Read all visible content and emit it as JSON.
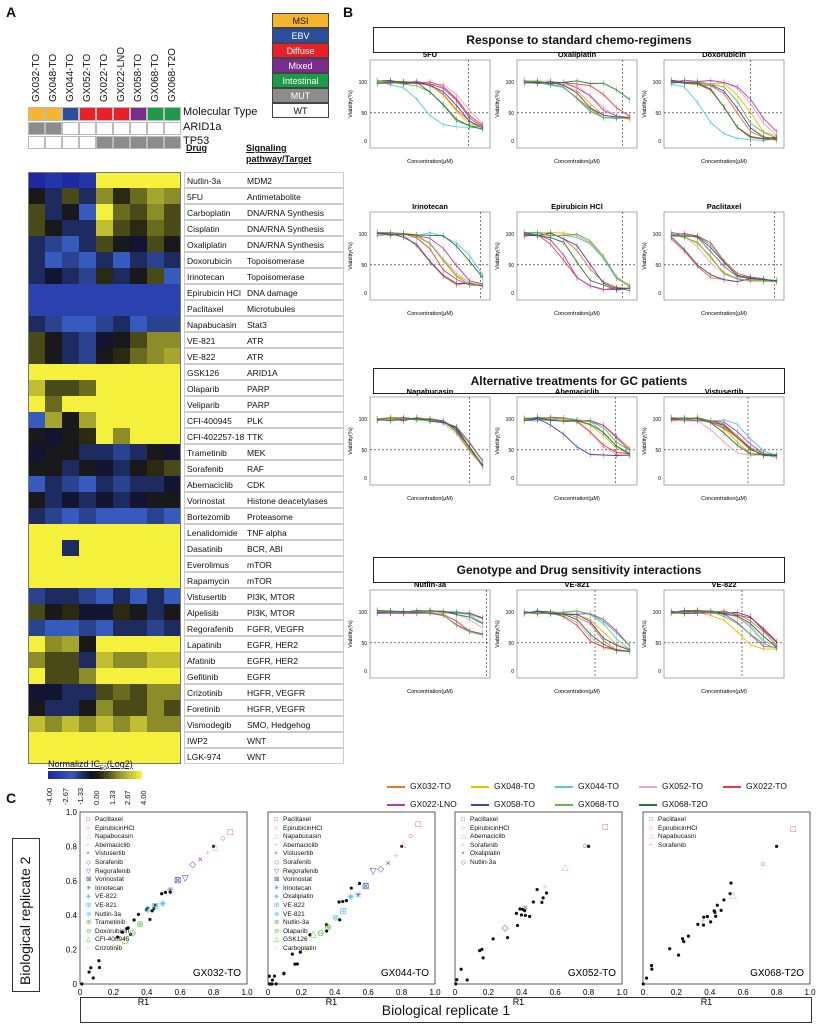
{
  "panel_a": {
    "letter": "A",
    "samples": [
      "GX032-TO",
      "GX048-TO",
      "GX044-TO",
      "GX052-TO",
      "GX022-TO",
      "GX022-LNO",
      "GX058-TO",
      "GX068-TO",
      "GX068-T2O"
    ],
    "annotation_rows": [
      "Molecular Type",
      "ARID1a",
      "TP53"
    ],
    "molecular_types": [
      "MSI",
      "MSI",
      "EBV",
      "Diffuse",
      "Diffuse",
      "Diffuse",
      "Mixed",
      "Intestinal",
      "Intestinal"
    ],
    "arid1a": [
      "MUT",
      "MUT",
      "WT",
      "WT",
      "WT",
      "WT",
      "WT",
      "WT",
      "WT"
    ],
    "tp53": [
      "WT",
      "WT",
      "WT",
      "WT",
      "MUT",
      "MUT",
      "MUT",
      "MUT",
      "MUT"
    ],
    "legend_items": [
      {
        "label": "MSI",
        "color": "#f5b52e"
      },
      {
        "label": "EBV",
        "color": "#2b4f9c"
      },
      {
        "label": "Diffuse",
        "color": "#e8202a"
      },
      {
        "label": "Mixed",
        "color": "#7b2d8e"
      },
      {
        "label": "Intestinal",
        "color": "#1f9a4a"
      },
      {
        "label": "MUT",
        "color": "#8c8c8c"
      },
      {
        "label": "WT",
        "color": "#ffffff"
      }
    ],
    "drug_header": "Drug",
    "target_header": "Signaling pathway/Target",
    "drugs": [
      {
        "name": "Nutlin-3a",
        "target": "MDM2"
      },
      {
        "name": "5FU",
        "target": "Antimetabolite"
      },
      {
        "name": "Carboplatin",
        "target": "DNA/RNA Synthesis"
      },
      {
        "name": "Cisplatin",
        "target": "DNA/RNA Synthesis"
      },
      {
        "name": "Oxaliplatin",
        "target": "DNA/RNA Synthesis"
      },
      {
        "name": "Doxorubicin",
        "target": "Topoisomerase"
      },
      {
        "name": "Irinotecan",
        "target": "Topoisomerase"
      },
      {
        "name": "Epirubicin HCl",
        "target": "DNA damage"
      },
      {
        "name": "Paclitaxel",
        "target": "Microtubules"
      },
      {
        "name": "Napabucasin",
        "target": "Stat3"
      },
      {
        "name": "VE-821",
        "target": "ATR"
      },
      {
        "name": "VE-822",
        "target": "ATR"
      },
      {
        "name": "GSK126",
        "target": "ARID1A"
      },
      {
        "name": "Olaparib",
        "target": "PARP"
      },
      {
        "name": "Veliparib",
        "target": "PARP"
      },
      {
        "name": "CFI-400945",
        "target": "PLK"
      },
      {
        "name": "CFI-402257-18",
        "target": "TTK"
      },
      {
        "name": "Trametinib",
        "target": "MEK"
      },
      {
        "name": "Sorafenib",
        "target": "RAF"
      },
      {
        "name": "Abemaciclib",
        "target": "CDK"
      },
      {
        "name": "Vorinostat",
        "target": "Histone deacetylases"
      },
      {
        "name": "Bortezomib",
        "target": "Proteasome"
      },
      {
        "name": "Lenalidomide",
        "target": "TNF alpha"
      },
      {
        "name": "Dasatinib",
        "target": "BCR, ABI"
      },
      {
        "name": "Everolimus",
        "target": "mTOR"
      },
      {
        "name": "Rapamycin",
        "target": "mTOR"
      },
      {
        "name": "Vistusertib",
        "target": "PI3K, MTOR"
      },
      {
        "name": "Alpelisib",
        "target": "PI3K, MTOR"
      },
      {
        "name": "Regorafenib",
        "target": "FGFR, VEGFR"
      },
      {
        "name": "Lapatinib",
        "target": "EGFR, HER2"
      },
      {
        "name": "Afatinib",
        "target": "EGFR, HER2"
      },
      {
        "name": "Gefitinib",
        "target": "EGFR"
      },
      {
        "name": "Crizotinib",
        "target": "HGFR, VEGFR"
      },
      {
        "name": "Foretinib",
        "target": "HGFR, VEGFR"
      },
      {
        "name": "Vismodegib",
        "target": "SMO, Hedgehog"
      },
      {
        "name": "IWP2",
        "target": "WNT"
      },
      {
        "name": "LGK-974",
        "target": "WNT"
      }
    ],
    "heatmap_values": [
      [
        -4,
        -3.5,
        -4,
        -3.5,
        4,
        4,
        4,
        4,
        4
      ],
      [
        0,
        -1,
        1,
        -1,
        2,
        0.5,
        1.5,
        2.5,
        2
      ],
      [
        1,
        -1,
        0,
        -2,
        4,
        1.5,
        1,
        2,
        1
      ],
      [
        1,
        0,
        -1,
        -1,
        3,
        1,
        0.5,
        1.5,
        1
      ],
      [
        -1,
        -1.5,
        -2,
        -1,
        1,
        0,
        -0.5,
        1,
        0
      ],
      [
        -1,
        -2,
        -1.5,
        -2,
        -1,
        -2,
        -1,
        -1.5,
        -1
      ],
      [
        -1,
        -0.5,
        -1,
        -1.5,
        0.5,
        -1,
        0,
        1,
        -2
      ],
      [
        -3,
        -3,
        -3,
        -3,
        -3,
        -3,
        -3,
        -3,
        -3
      ],
      [
        -3,
        -3,
        -3,
        -3,
        -3,
        -3,
        -3,
        -3,
        -3
      ],
      [
        -1,
        -1.5,
        -2,
        -2,
        -1.5,
        -1,
        -2,
        -1.5,
        -1.5
      ],
      [
        1,
        0,
        -1,
        -1.5,
        -0.5,
        0,
        1,
        2,
        2
      ],
      [
        1,
        0,
        -1,
        -1.5,
        0,
        0.5,
        1.5,
        2,
        2.5
      ],
      [
        4,
        4,
        4,
        4,
        4,
        4,
        4,
        4,
        4
      ],
      [
        3,
        1,
        1,
        1.5,
        4,
        4,
        4,
        4,
        4
      ],
      [
        4,
        1.5,
        4,
        4,
        4,
        4,
        4,
        4,
        4
      ],
      [
        -2,
        2.5,
        0,
        2.5,
        4,
        4,
        4,
        4,
        4
      ],
      [
        0,
        -0.5,
        0,
        0.5,
        4,
        2,
        4,
        4,
        4
      ],
      [
        -0.5,
        0,
        0,
        -1,
        -1,
        -1.5,
        -1,
        0,
        -0.5
      ],
      [
        0,
        0,
        -1,
        0,
        -0.5,
        -1,
        0,
        0.5,
        1
      ],
      [
        -2,
        -1,
        -1.5,
        -2,
        -1,
        -1.5,
        -1,
        -1,
        -0.5
      ],
      [
        0,
        -1,
        -0.5,
        -1,
        -0.5,
        -1,
        -0.5,
        0,
        0
      ],
      [
        -1,
        -1.5,
        -2,
        -1.5,
        -2,
        -2,
        -2,
        -1.5,
        -2
      ],
      [
        4,
        4,
        4,
        4,
        4,
        4,
        4,
        4,
        4
      ],
      [
        4,
        4,
        -1,
        4,
        4,
        4,
        4,
        4,
        4
      ],
      [
        4,
        4,
        4,
        4,
        4,
        4,
        4,
        4,
        4
      ],
      [
        4,
        4,
        4,
        4,
        4,
        4,
        4,
        4,
        4
      ],
      [
        -1.5,
        -1,
        -1,
        -1.5,
        -2,
        -1,
        -2,
        -1,
        -2
      ],
      [
        1,
        0,
        0.5,
        -0.5,
        -0.5,
        0.5,
        0,
        -1,
        0
      ],
      [
        -1.5,
        -2,
        -2,
        -1.5,
        -2,
        -1,
        -1,
        -1.5,
        -1
      ],
      [
        4,
        2,
        2.5,
        0,
        4,
        4,
        4,
        4,
        4
      ],
      [
        2,
        1,
        1,
        -1,
        3,
        2,
        2,
        3,
        3
      ],
      [
        4,
        1,
        1,
        2,
        4,
        4,
        4,
        4,
        4
      ],
      [
        -0.5,
        -0.5,
        -1,
        -1,
        1,
        1.5,
        1,
        2,
        2
      ],
      [
        0,
        -1,
        -1,
        0,
        2,
        1,
        1,
        2,
        1
      ],
      [
        3,
        2,
        3,
        2,
        3,
        2,
        3,
        2,
        2
      ],
      [
        4,
        4,
        4,
        4,
        4,
        4,
        4,
        4,
        4
      ],
      [
        4,
        4,
        4,
        4,
        4,
        4,
        4,
        4,
        4
      ]
    ],
    "colorbar_title": "Normalizd IC",
    "colorbar_sub": "50",
    "colorbar_suffix": "(Log2)",
    "colorbar_ticks": [
      "-4.00",
      "-2.67",
      "-1.33",
      "0.00",
      "1.33",
      "2.67",
      "4.00"
    ]
  },
  "panel_b": {
    "letter": "B",
    "section1": {
      "title": "Response to standard chemo-regimens",
      "color": "#a9d8f0"
    },
    "section2": {
      "title": "Alternative treatments for GC patients",
      "color": "#7cc14a"
    },
    "section3": {
      "title": "Genotype and Drug sensitivity interactions",
      "color": "#f6de97"
    },
    "plots": [
      {
        "title": "5FU"
      },
      {
        "title": "Oxaliplatin"
      },
      {
        "title": "Doxorubicin"
      },
      {
        "title": "Irinotecan"
      },
      {
        "title": "Epirubicin HCl"
      },
      {
        "title": "Paclitaxel"
      },
      {
        "title": "Napabucasin"
      },
      {
        "title": "Abemaciclib"
      },
      {
        "title": "Vistusertib"
      },
      {
        "title": "Nutlin-3a"
      },
      {
        "title": "VE-821"
      },
      {
        "title": "VE-822"
      }
    ],
    "ylabel": "Viability(%)",
    "xlabel": "Concentration(µM)",
    "y_ticks": [
      "100",
      "50",
      "0"
    ],
    "legend": [
      {
        "label": "GX032-TO",
        "color": "#e87722"
      },
      {
        "label": "GX048-TO",
        "color": "#f3b800"
      },
      {
        "label": "GX044-TO",
        "color": "#5bc2d9"
      },
      {
        "label": "GX052-TO",
        "color": "#f2a7b9"
      },
      {
        "label": "GX022-TO",
        "color": "#e53d3d"
      },
      {
        "label": "GX022-LNO",
        "color": "#b43fb3"
      },
      {
        "label": "GX058-TO",
        "color": "#4d3fb0"
      },
      {
        "label": "GX068-TO",
        "color": "#63b846"
      },
      {
        "label": "GX068-T2O",
        "color": "#1f7a3a"
      }
    ]
  },
  "panel_c": {
    "letter": "C",
    "ylabel": "Biological replicate 2",
    "xlabel": "Biological replicate 1",
    "axis_x": "R1",
    "ticks": [
      "0",
      "0.2",
      "0.4",
      "0.6",
      "0.8",
      "1.0"
    ],
    "scatters": [
      {
        "label": "GX032-TO",
        "legend": [
          "Paclitaxel",
          "EpirubicinHCl",
          "Napabucasin",
          "Abemaciclib",
          "Vistusertib",
          "Sorafenib",
          "Regorafenib",
          "Vorinostat",
          "Irinotecan",
          "VE-822",
          "VE-821",
          "Nutlin-3a",
          "Trametinib",
          "Doxorubicin",
          "CFI-400945",
          "Crizotinib"
        ]
      },
      {
        "label": "GX044-TO",
        "legend": [
          "Paclitaxel",
          "EpirubicinHCl",
          "Napabucasin",
          "Abemaciclib",
          "Vistusertib",
          "Sorafenib",
          "Regorafenib",
          "Vorinostat",
          "Irinotecan",
          "Oxaliplatin",
          "VE-822",
          "VE-821",
          "Nutlin-3a",
          "Olaparib",
          "GSK126",
          "Carboplatin"
        ]
      },
      {
        "label": "GX052-TO",
        "legend": [
          "Paclitaxel",
          "EpirubicinHCl",
          "Abemaciclib",
          "Sorafenib",
          "Oxaliplatin",
          "Nutlin-3a"
        ]
      },
      {
        "label": "GX068-T2O",
        "legend": [
          "Paclitaxel",
          "EpirubicinHCl",
          "Napabucasin",
          "Sorafenib"
        ]
      }
    ]
  }
}
